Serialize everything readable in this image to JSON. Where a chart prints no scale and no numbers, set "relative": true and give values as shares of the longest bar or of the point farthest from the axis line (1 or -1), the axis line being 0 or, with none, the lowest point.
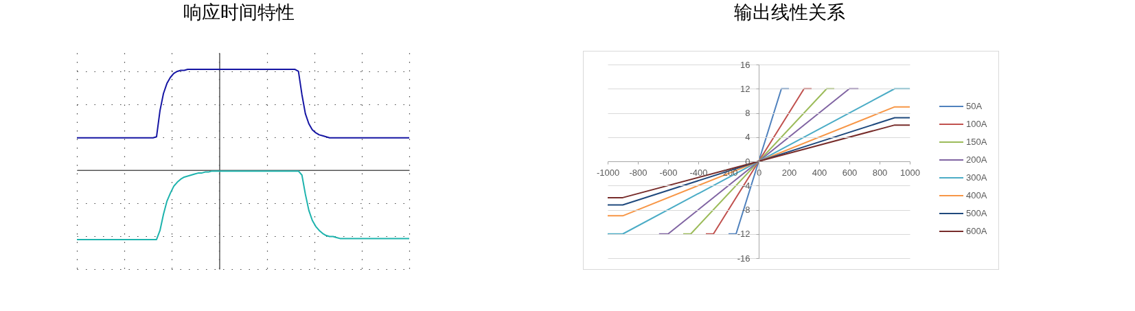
{
  "chart_data": [
    {
      "type": "line",
      "title": "响应时间特性",
      "relative": true,
      "tick_labels": false,
      "grid": true,
      "categories": [
        null,
        null,
        null,
        null,
        null,
        null,
        null,
        null,
        null,
        null,
        null,
        null,
        null,
        null,
        null,
        null,
        null,
        null,
        null,
        null,
        null,
        null,
        null,
        null,
        null,
        null,
        null,
        null,
        null,
        null,
        null,
        null,
        null,
        null,
        null,
        null,
        null,
        null,
        null,
        null,
        null,
        null,
        null,
        null,
        null,
        null,
        null,
        null,
        null,
        null,
        null,
        null,
        null,
        null,
        null,
        null,
        null,
        null,
        null,
        null,
        null,
        null,
        null,
        null,
        null,
        null,
        null,
        null,
        null,
        null,
        null,
        null,
        null,
        null,
        null,
        null,
        null,
        null,
        null,
        null,
        null,
        null,
        null,
        null,
        null,
        null,
        null,
        null,
        null,
        null,
        null,
        null,
        null,
        null,
        null,
        null,
        null
      ],
      "series": [
        {
          "color": "#1515a3",
          "values": [
            0.32,
            0.32,
            0.32,
            0.32,
            0.32,
            0.32,
            0.32,
            0.32,
            0.32,
            0.32,
            0.32,
            0.32,
            0.32,
            0.32,
            0.32,
            0.32,
            0.32,
            0.32,
            0.32,
            0.32,
            0.32,
            0.32,
            0.32,
            0.33,
            0.59,
            0.76,
            0.86,
            0.92,
            0.96,
            0.98,
            0.99,
            0.99,
            1,
            1,
            1,
            1,
            1,
            1,
            1,
            1,
            1,
            1,
            1,
            1,
            1,
            1,
            1,
            1,
            1,
            1,
            1,
            1,
            1,
            1,
            1,
            1,
            1,
            1,
            1,
            1,
            1,
            1,
            1,
            1,
            0.98,
            0.75,
            0.56,
            0.46,
            0.4,
            0.37,
            0.35,
            0.34,
            0.33,
            0.32,
            0.32,
            0.32,
            0.32,
            0.32,
            0.32,
            0.32,
            0.32,
            0.32,
            0.32,
            0.32,
            0.32,
            0.32,
            0.32,
            0.32,
            0.32,
            0.32,
            0.32,
            0.32,
            0.32,
            0.32,
            0.32,
            0.32,
            0.32
          ]
        },
        {
          "color": "#1db3ad",
          "values": [
            -0.69,
            -0.69,
            -0.69,
            -0.69,
            -0.69,
            -0.69,
            -0.69,
            -0.69,
            -0.69,
            -0.69,
            -0.69,
            -0.69,
            -0.69,
            -0.69,
            -0.69,
            -0.69,
            -0.69,
            -0.69,
            -0.69,
            -0.69,
            -0.69,
            -0.69,
            -0.69,
            -0.69,
            -0.6,
            -0.44,
            -0.31,
            -0.23,
            -0.16,
            -0.12,
            -0.09,
            -0.07,
            -0.06,
            -0.05,
            -0.04,
            -0.03,
            -0.03,
            -0.02,
            -0.02,
            -0.01,
            -0.01,
            -0.01,
            -0.01,
            -0.01,
            -0.01,
            -0.01,
            -0.01,
            -0.01,
            -0.01,
            -0.01,
            -0.01,
            -0.01,
            -0.01,
            -0.01,
            -0.01,
            -0.01,
            -0.01,
            -0.01,
            -0.01,
            -0.01,
            -0.01,
            -0.01,
            -0.01,
            -0.01,
            -0.01,
            -0.05,
            -0.24,
            -0.4,
            -0.5,
            -0.56,
            -0.6,
            -0.63,
            -0.65,
            -0.66,
            -0.66,
            -0.67,
            -0.68,
            -0.68,
            -0.68,
            -0.68,
            -0.68,
            -0.68,
            -0.68,
            -0.68,
            -0.68,
            -0.68,
            -0.68,
            -0.68,
            -0.68,
            -0.68,
            -0.68,
            -0.68,
            -0.68,
            -0.68,
            -0.68,
            -0.68,
            -0.68
          ]
        }
      ]
    },
    {
      "type": "line",
      "title": "输出线性关系",
      "xlim": [
        -1000,
        1000
      ],
      "xticks": [
        -1000,
        -800,
        -600,
        -400,
        -200,
        0,
        200,
        400,
        600,
        800,
        1000
      ],
      "ylim": [
        -16,
        16
      ],
      "yticks": [
        -16,
        -12,
        -8,
        -4,
        0,
        4,
        8,
        12,
        16
      ],
      "grid": "y",
      "legend": "right",
      "series": [
        {
          "name": "50A",
          "color": "#4f81bd",
          "x": [
            -200,
            -150,
            150,
            200
          ],
          "values": [
            -12,
            -12,
            12,
            12
          ]
        },
        {
          "name": "100A",
          "color": "#c0504d",
          "x": [
            -350,
            -300,
            300,
            350
          ],
          "values": [
            -12,
            -12,
            12,
            12
          ]
        },
        {
          "name": "150A",
          "color": "#9bbb59",
          "x": [
            -500,
            -450,
            450,
            500
          ],
          "values": [
            -12,
            -12,
            12,
            12
          ]
        },
        {
          "name": "200A",
          "color": "#8064a2",
          "x": [
            -660,
            -600,
            600,
            660
          ],
          "values": [
            -12,
            -12,
            12,
            12
          ]
        },
        {
          "name": "300A",
          "color": "#4bacc6",
          "x": [
            -1000,
            -900,
            900,
            1000
          ],
          "values": [
            -12,
            -12,
            12,
            12
          ]
        },
        {
          "name": "400A",
          "color": "#f79646",
          "x": [
            -1000,
            -900,
            900,
            1000
          ],
          "values": [
            -9,
            -9,
            9,
            9
          ]
        },
        {
          "name": "500A",
          "color": "#1f497d",
          "x": [
            -1000,
            -900,
            900,
            1000
          ],
          "values": [
            -7.2,
            -7.2,
            7.2,
            7.2
          ]
        },
        {
          "name": "600A",
          "color": "#772c2a",
          "x": [
            -1000,
            -900,
            900,
            1000
          ],
          "values": [
            -6,
            -6,
            6,
            6
          ]
        }
      ]
    }
  ]
}
